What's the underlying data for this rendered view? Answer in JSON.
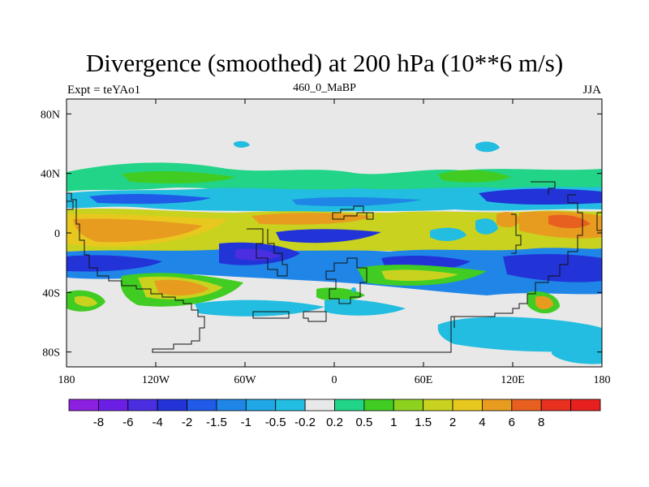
{
  "title": "Divergence (smoothed) at 200 hPa (10**6 m/s)",
  "expt_label": "Expt = teYAo1",
  "run_label": "460_0_MaBP",
  "season_label": "JJA",
  "map": {
    "projection": "cylindrical equidistant",
    "lat_range": [
      -90,
      90
    ],
    "lon_range": [
      -180,
      180
    ],
    "lat_ticks": [
      {
        "lat": 80,
        "label": "80N"
      },
      {
        "lat": 40,
        "label": "40N"
      },
      {
        "lat": 0,
        "label": "0"
      },
      {
        "lat": -40,
        "label": "40S"
      },
      {
        "lat": -80,
        "label": "80S"
      }
    ],
    "lon_ticks": [
      {
        "lon": -180,
        "label": "180"
      },
      {
        "lon": -120,
        "label": "120W"
      },
      {
        "lon": -60,
        "label": "60W"
      },
      {
        "lon": 0,
        "label": "0"
      },
      {
        "lon": 60,
        "label": "60E"
      },
      {
        "lon": 120,
        "label": "120E"
      },
      {
        "lon": 180,
        "label": "180"
      }
    ]
  },
  "colorbar": {
    "colors": [
      "#8c1fe0",
      "#6b1fe6",
      "#4a2ee0",
      "#2233d8",
      "#1f5ae8",
      "#1f86e8",
      "#1fa7e6",
      "#22bde0",
      "#e8e8e8",
      "#22d488",
      "#40cc22",
      "#8cd21f",
      "#c8d21f",
      "#e8c81f",
      "#e89c1f",
      "#e8601f",
      "#e8301f",
      "#e81f1f"
    ],
    "labels": [
      "-8",
      "-6",
      "-4",
      "-2",
      "-1.5",
      "-1",
      "-0.5",
      "-0.2",
      "0.2",
      "0.5",
      "1",
      "1.5",
      "2",
      "4",
      "6",
      "8"
    ]
  }
}
